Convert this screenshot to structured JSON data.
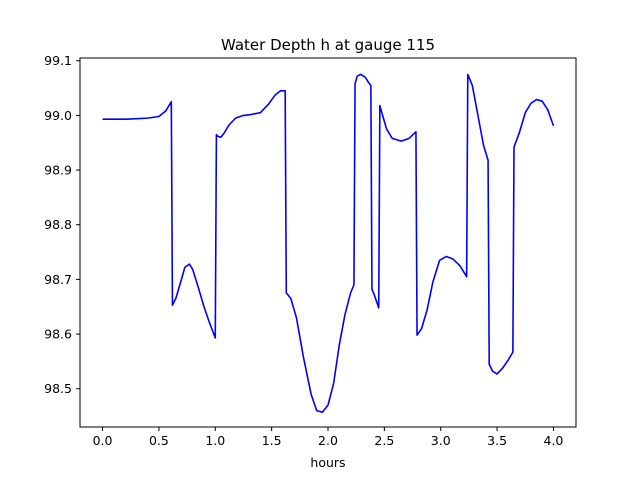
{
  "chart_data": {
    "type": "line",
    "title": "Water Depth h at gauge 115",
    "xlabel": "hours",
    "ylabel": "",
    "xlim": [
      -0.2,
      4.2
    ],
    "ylim": [
      98.43,
      99.105
    ],
    "xticks": [
      0.0,
      0.5,
      1.0,
      1.5,
      2.0,
      2.5,
      3.0,
      3.5,
      4.0
    ],
    "xtick_labels": [
      "0.0",
      "0.5",
      "1.0",
      "1.5",
      "2.0",
      "2.5",
      "3.0",
      "3.5",
      "4.0"
    ],
    "yticks": [
      98.5,
      98.6,
      98.7,
      98.8,
      98.9,
      99.0,
      99.1
    ],
    "ytick_labels": [
      "98.5",
      "98.6",
      "98.7",
      "98.8",
      "98.9",
      "99.0",
      "99.1"
    ],
    "grid": false,
    "series": [
      {
        "color": "#0000ff",
        "x": [
          0.0,
          0.2,
          0.4,
          0.5,
          0.56,
          0.61,
          0.62,
          0.65,
          0.7,
          0.73,
          0.77,
          0.8,
          0.85,
          0.9,
          0.95,
          1.0,
          1.01,
          1.02,
          1.05,
          1.08,
          1.12,
          1.18,
          1.25,
          1.3,
          1.4,
          1.47,
          1.53,
          1.58,
          1.62,
          1.63,
          1.64,
          1.67,
          1.72,
          1.78,
          1.85,
          1.9,
          1.95,
          2.0,
          2.05,
          2.1,
          2.15,
          2.2,
          2.23,
          2.24,
          2.26,
          2.29,
          2.33,
          2.36,
          2.38,
          2.39,
          2.41,
          2.43,
          2.45,
          2.46,
          2.48,
          2.52,
          2.57,
          2.65,
          2.72,
          2.78,
          2.79,
          2.83,
          2.88,
          2.93,
          2.99,
          3.05,
          3.11,
          3.17,
          3.23,
          3.24,
          3.28,
          3.33,
          3.38,
          3.42,
          3.43,
          3.46,
          3.5,
          3.55,
          3.6,
          3.64,
          3.65,
          3.7,
          3.75,
          3.8,
          3.85,
          3.9,
          3.95,
          4.0
        ],
        "y": [
          98.993,
          98.993,
          98.995,
          98.998,
          99.008,
          99.025,
          98.653,
          98.665,
          98.7,
          98.722,
          98.728,
          98.718,
          98.685,
          98.65,
          98.62,
          98.593,
          98.965,
          98.962,
          98.96,
          98.968,
          98.982,
          98.995,
          99.0,
          99.001,
          99.005,
          99.02,
          99.037,
          99.045,
          99.045,
          98.675,
          98.673,
          98.665,
          98.63,
          98.56,
          98.49,
          98.46,
          98.457,
          98.47,
          98.51,
          98.58,
          98.635,
          98.675,
          98.69,
          99.058,
          99.072,
          99.075,
          99.07,
          99.06,
          99.055,
          98.682,
          98.672,
          98.66,
          98.648,
          99.018,
          99.003,
          98.975,
          98.958,
          98.953,
          98.958,
          98.97,
          98.598,
          98.61,
          98.645,
          98.695,
          98.735,
          98.742,
          98.737,
          98.725,
          98.705,
          99.075,
          99.055,
          99.0,
          98.945,
          98.918,
          98.545,
          98.532,
          98.527,
          98.538,
          98.553,
          98.567,
          98.942,
          98.97,
          99.005,
          99.022,
          99.029,
          99.026,
          99.01,
          98.981
        ]
      }
    ]
  }
}
